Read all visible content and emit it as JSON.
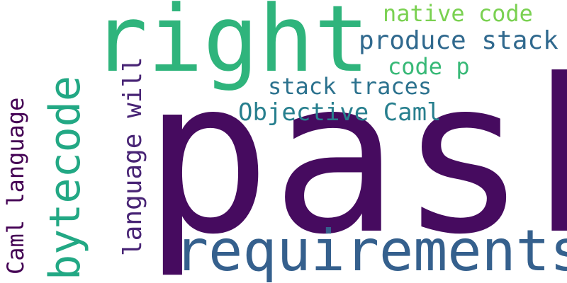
{
  "word_cloud": {
    "words": [
      {
        "text": "pask",
        "color": "#460b5f",
        "orientation": "horizontal"
      },
      {
        "text": "right",
        "color": "#2fb47c",
        "orientation": "horizontal"
      },
      {
        "text": "requirements",
        "color": "#35608d",
        "orientation": "horizontal"
      },
      {
        "text": "bytecode",
        "color": "#22a884",
        "orientation": "vertical"
      },
      {
        "text": "Caml language",
        "color": "#440154",
        "orientation": "vertical"
      },
      {
        "text": "language will",
        "color": "#482475",
        "orientation": "vertical"
      },
      {
        "text": "native code",
        "color": "#7ad151",
        "orientation": "horizontal"
      },
      {
        "text": "produce stack",
        "color": "#30698e",
        "orientation": "horizontal"
      },
      {
        "text": "code p",
        "color": "#38b977",
        "orientation": "horizontal"
      },
      {
        "text": "stack traces",
        "color": "#2c728e",
        "orientation": "horizontal"
      },
      {
        "text": "Objective Caml",
        "color": "#277f8e",
        "orientation": "horizontal"
      }
    ]
  }
}
